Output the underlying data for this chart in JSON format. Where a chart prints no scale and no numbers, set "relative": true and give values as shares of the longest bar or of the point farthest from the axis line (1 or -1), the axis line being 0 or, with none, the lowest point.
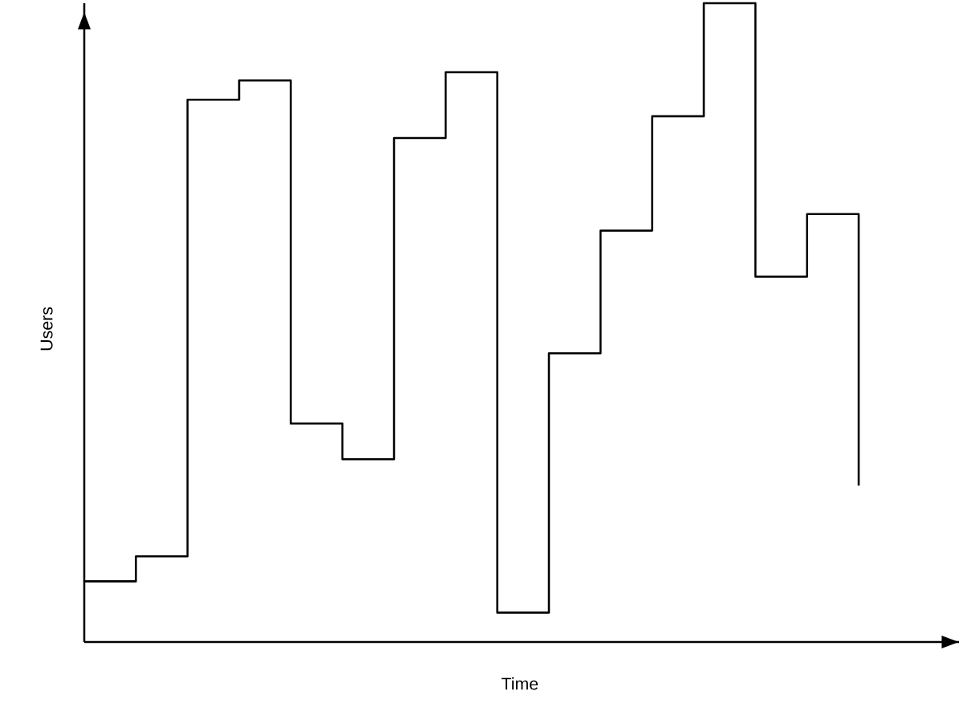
{
  "chart_data": {
    "type": "step",
    "xlabel": "Time",
    "ylabel": "Users",
    "relative": true,
    "color": "#000000",
    "categories": [
      null,
      null,
      null,
      null,
      null,
      null,
      null,
      null,
      null,
      null,
      null,
      null,
      null,
      null,
      null,
      null
    ],
    "values": [
      0.095,
      0.134,
      0.849,
      0.879,
      0.342,
      0.286,
      0.789,
      0.892,
      0.046,
      0.452,
      0.644,
      0.823,
      1,
      0.572,
      0.67,
      0.245
    ]
  }
}
